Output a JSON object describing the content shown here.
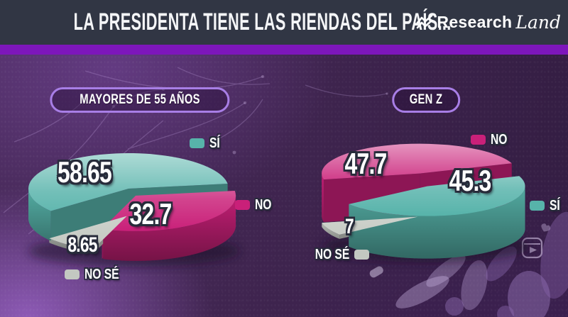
{
  "header": {
    "title": "LA PRESIDENTA TIENE LAS RIENDAS DEL PAÍS...",
    "brand_regular": "Research",
    "brand_script": "Land"
  },
  "colors": {
    "header_bg": "#313644",
    "accent_strip": "#7d16bb",
    "background_purple": "#402550",
    "badge_border": "#a87ee6",
    "yes_teal": "#57b3aa",
    "no_magenta": "#c92079",
    "dontknow_gray": "#c3c8c1",
    "label_text": "#ffffff",
    "label_outline": "#272b3a"
  },
  "chart_data": [
    {
      "type": "pie",
      "title": "MAYORES DE 55 AÑOS",
      "labels": [
        "SÍ",
        "NO",
        "NO SÉ"
      ],
      "values": [
        58.65,
        32.7,
        8.65
      ],
      "colors": [
        "#57b3aa",
        "#c92079",
        "#c3c8c1"
      ],
      "style": "3d-exploded",
      "legend_position": "around-pie"
    },
    {
      "type": "pie",
      "title": "GEN Z",
      "labels": [
        "NO",
        "SÍ",
        "NO SÉ"
      ],
      "values": [
        47.7,
        45.3,
        7
      ],
      "colors": [
        "#c92079",
        "#57b3aa",
        "#c3c8c1"
      ],
      "style": "3d-exploded",
      "legend_position": "around-pie"
    }
  ]
}
